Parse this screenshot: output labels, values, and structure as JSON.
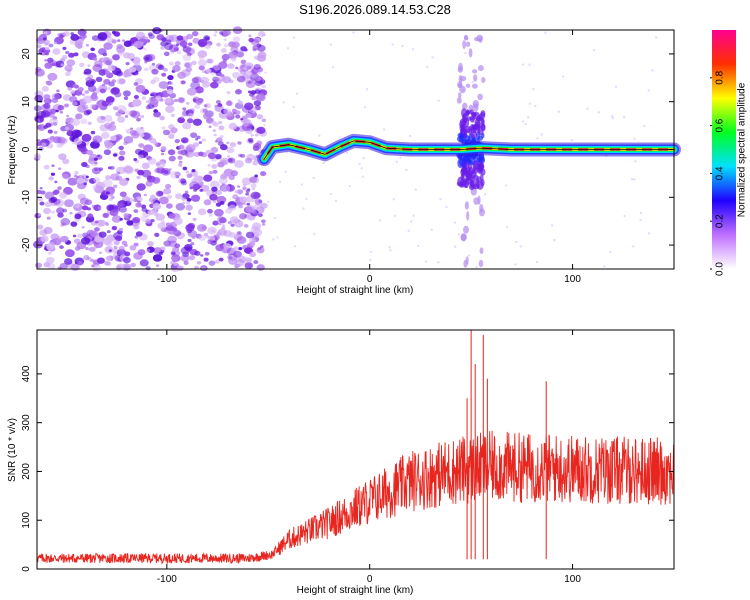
{
  "title": "S196.2026.089.14.53.C28",
  "chart_data": [
    {
      "type": "heatmap",
      "xlabel": "Height of straight line (km)",
      "ylabel": "Frequency (Hz)",
      "xlim": [
        -164,
        150
      ],
      "ylim": [
        -25,
        25
      ],
      "xticks": [
        -100,
        0,
        100
      ],
      "yticks": [
        -20,
        -10,
        0,
        10,
        20
      ],
      "xtick_labels": [
        "-100",
        "0",
        "100"
      ],
      "ytick_labels": [
        "-20",
        "-10",
        "0",
        "10",
        "20"
      ],
      "noise_region_x": [
        -164,
        -52
      ],
      "trace": [
        {
          "x": -52,
          "y": -2
        },
        {
          "x": -48,
          "y": 0.5
        },
        {
          "x": -40,
          "y": 1
        },
        {
          "x": -30,
          "y": 0
        },
        {
          "x": -22,
          "y": -1
        },
        {
          "x": -15,
          "y": 0.5
        },
        {
          "x": -8,
          "y": 1.8
        },
        {
          "x": 0,
          "y": 1.5
        },
        {
          "x": 8,
          "y": 0.3
        },
        {
          "x": 20,
          "y": 0
        },
        {
          "x": 45,
          "y": 0
        },
        {
          "x": 55,
          "y": 0.3
        },
        {
          "x": 70,
          "y": 0
        },
        {
          "x": 150,
          "y": 0
        }
      ],
      "burst_x": 48,
      "colorbar": {
        "label": "Normalized spectral amplitude",
        "range": [
          0,
          1
        ],
        "ticks": [
          0.0,
          0.2,
          0.4,
          0.6,
          0.8
        ],
        "tick_labels": [
          "0.0",
          "0.2",
          "0.4",
          "0.6",
          "0.8"
        ],
        "colors": [
          "#ffffff",
          "#c070ff",
          "#2000ff",
          "#00e0ff",
          "#00ff20",
          "#ffff00",
          "#ff3000",
          "#ff0090"
        ]
      }
    },
    {
      "type": "line",
      "xlabel": "Height of straight line (km)",
      "ylabel": "SNR (10 * v/v)",
      "xlim": [
        -164,
        150
      ],
      "ylim": [
        0,
        490
      ],
      "xticks": [
        -100,
        0,
        100
      ],
      "yticks": [
        0,
        100,
        200,
        300,
        400
      ],
      "xtick_labels": [
        "-100",
        "0",
        "100"
      ],
      "ytick_labels": [
        "0",
        "100",
        "200",
        "300",
        "400"
      ],
      "color": "#e8251e",
      "envelope": [
        {
          "x": -164,
          "y": 22
        },
        {
          "x": -60,
          "y": 22
        },
        {
          "x": -48,
          "y": 30
        },
        {
          "x": -40,
          "y": 60
        },
        {
          "x": -20,
          "y": 95
        },
        {
          "x": 0,
          "y": 140
        },
        {
          "x": 20,
          "y": 180
        },
        {
          "x": 40,
          "y": 200
        },
        {
          "x": 60,
          "y": 210
        },
        {
          "x": 100,
          "y": 205
        },
        {
          "x": 150,
          "y": 200
        }
      ],
      "spikes": [
        {
          "x": 48,
          "y": 350
        },
        {
          "x": 50,
          "y": 490
        },
        {
          "x": 52,
          "y": 420
        },
        {
          "x": 56,
          "y": 480
        },
        {
          "x": 58,
          "y": 390
        },
        {
          "x": 87,
          "y": 385
        }
      ]
    }
  ]
}
